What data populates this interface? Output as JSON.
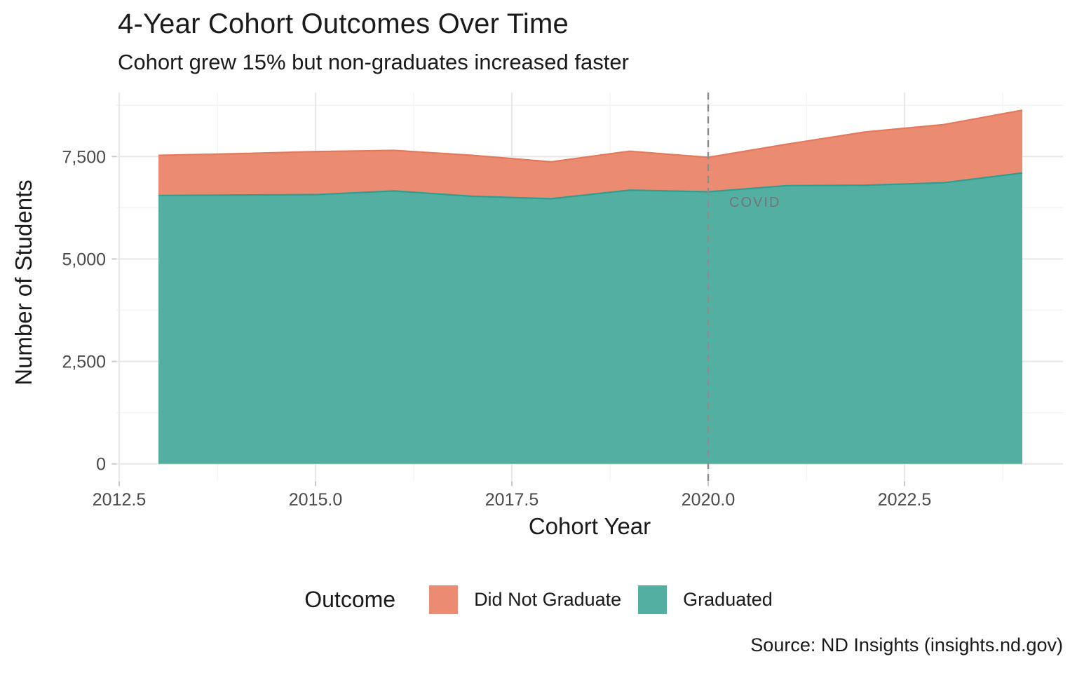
{
  "chart_data": {
    "type": "area",
    "stacked": true,
    "title": "4-Year Cohort Outcomes Over Time",
    "subtitle": "Cohort grew 15% but non-graduates increased faster",
    "xlabel": "Cohort Year",
    "ylabel": "Number of Students",
    "x": [
      2013,
      2014,
      2015,
      2016,
      2017,
      2018,
      2019,
      2020,
      2021,
      2022,
      2023,
      2024
    ],
    "series": [
      {
        "name": "Graduated",
        "fill": "#54AFA3",
        "stroke": "#2F9D90",
        "values": [
          6550,
          6560,
          6570,
          6660,
          6530,
          6470,
          6680,
          6640,
          6790,
          6800,
          6860,
          7100
        ]
      },
      {
        "name": "Did Not Graduate",
        "fill": "#EB8B71",
        "stroke": "#E3795C",
        "values": [
          980,
          1010,
          1050,
          990,
          1000,
          900,
          950,
          840,
          1010,
          1300,
          1420,
          1530
        ]
      }
    ],
    "totals": [
      7530,
      7570,
      7620,
      7650,
      7530,
      7370,
      7630,
      7480,
      7800,
      8100,
      8280,
      8630
    ],
    "x_ticks": {
      "values": [
        2012.5,
        2015.0,
        2017.5,
        2020.0,
        2022.5
      ],
      "labels": [
        "2012.5",
        "2015.0",
        "2017.5",
        "2020.0",
        "2022.5"
      ]
    },
    "y_ticks": {
      "values": [
        0,
        2500,
        5000,
        7500
      ],
      "labels": [
        "0",
        "2,500",
        "5,000",
        "7,500"
      ]
    },
    "x_minor_ticks": [
      2013.75,
      2016.25,
      2018.75,
      2021.25,
      2023.75
    ],
    "y_minor_ticks": [
      1250,
      3750,
      6250,
      8750
    ],
    "xlim": [
      2012.45,
      2024.55
    ],
    "ylim": [
      0,
      9050
    ],
    "grid": true,
    "annotation": {
      "label": "COVID",
      "line_x": 2020,
      "line_color": "#8C8C8C"
    },
    "legend": {
      "title": "Outcome",
      "position": "bottom",
      "items": [
        {
          "label": "Did Not Graduate",
          "color": "#EB8B71"
        },
        {
          "label": "Graduated",
          "color": "#54AFA3"
        }
      ]
    },
    "source": "Source: ND Insights (insights.nd.gov)"
  }
}
